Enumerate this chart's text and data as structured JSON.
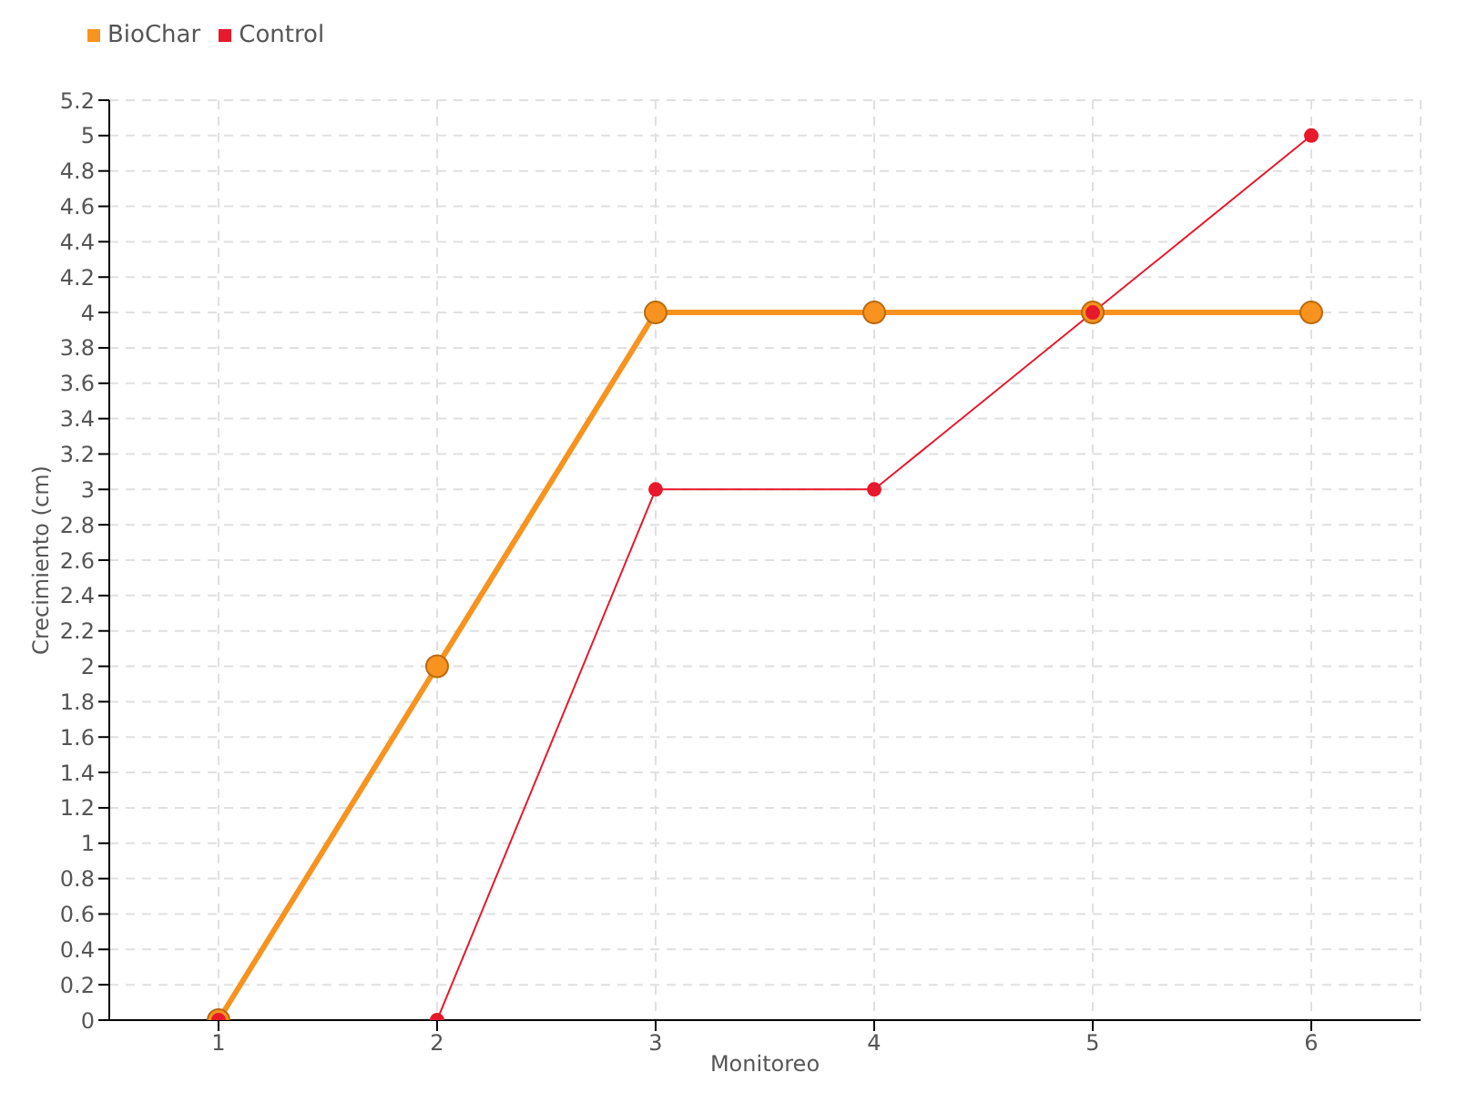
{
  "chart_data": {
    "type": "line",
    "xlabel": "Monitoreo",
    "ylabel": "Crecimiento (cm)",
    "x": [
      1,
      2,
      3,
      4,
      5,
      6
    ],
    "series": [
      {
        "name": "BioChar",
        "color": "#f7931e",
        "values": [
          0,
          2,
          4,
          4,
          4,
          4
        ]
      },
      {
        "name": "Control",
        "color": "#e8192c",
        "values": [
          0,
          0,
          3,
          3,
          4,
          5
        ]
      }
    ],
    "xlim": [
      0.5,
      6.5
    ],
    "xticks": [
      1,
      2,
      3,
      4,
      5,
      6
    ],
    "ylim": [
      0,
      5.2
    ],
    "yticks": [
      0,
      0.2,
      0.4,
      0.6,
      0.8,
      1,
      1.2,
      1.4,
      1.6,
      1.8,
      2,
      2.2,
      2.4,
      2.6,
      2.8,
      3,
      3.2,
      3.4,
      3.6,
      3.8,
      4,
      4.2,
      4.4,
      4.6,
      4.8,
      5,
      5.2
    ],
    "grid": true,
    "legend": "top left",
    "marker": "circle",
    "line_style": "solid"
  }
}
